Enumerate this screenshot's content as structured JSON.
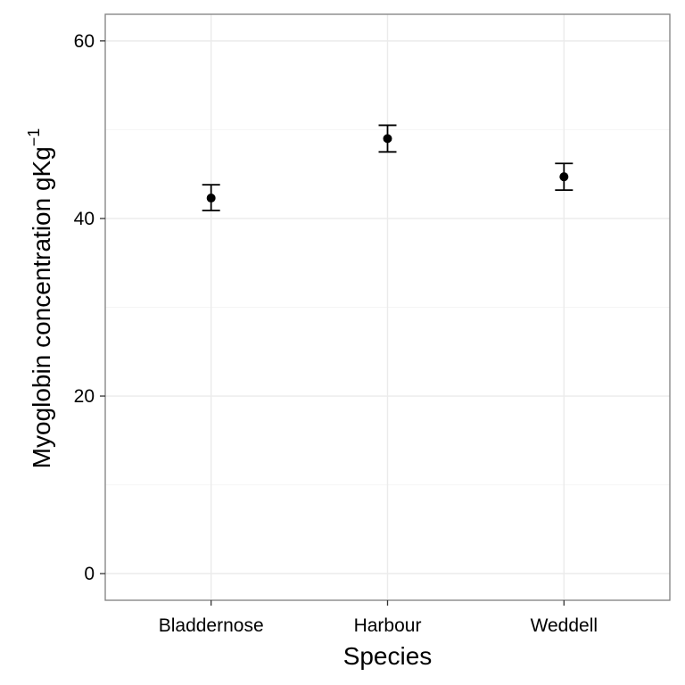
{
  "chart_data": {
    "type": "scatter",
    "title": "",
    "xlabel": "Species",
    "ylabel": "Myoglobin concentration gKg",
    "ylabel_superscript": "−1",
    "categories": [
      "Bladdernose",
      "Harbour",
      "Weddell"
    ],
    "series": [
      {
        "values": [
          42.3,
          49.0,
          44.7
        ],
        "lower": [
          40.9,
          47.5,
          43.2
        ],
        "upper": [
          43.8,
          50.5,
          46.2
        ]
      }
    ],
    "ylim": [
      -3,
      63
    ],
    "yticks": [
      0,
      20,
      40,
      60
    ],
    "y_minor_ticks": [
      10,
      30,
      50
    ],
    "grid": true,
    "legend": "none",
    "colors": {
      "background": "#ffffff",
      "grid_major": "#ebebeb",
      "grid_minor": "#f5f5f5",
      "panel_border": "#7f7f7f",
      "points": "#000000"
    }
  }
}
